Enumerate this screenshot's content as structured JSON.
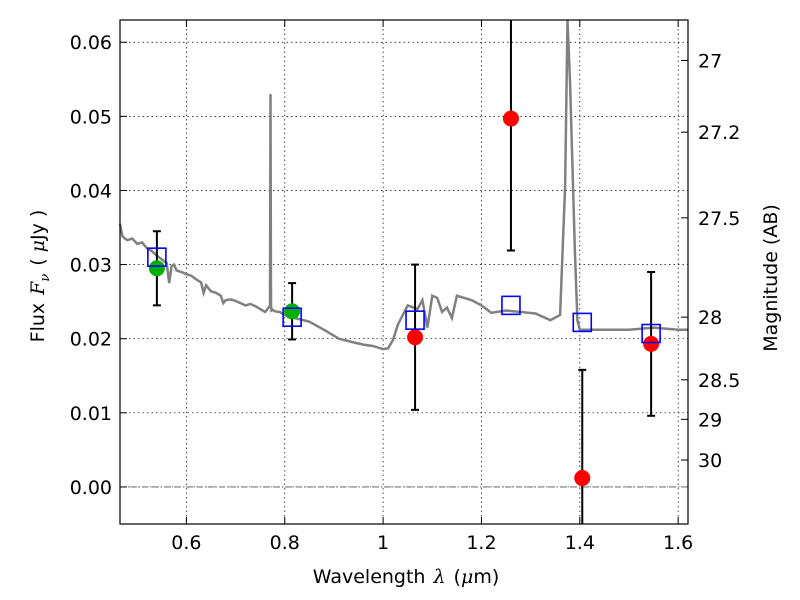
{
  "chart_data": {
    "type": "scatter",
    "title": "",
    "xlabel_text": "Wavelength",
    "xlabel_symbol": "λ",
    "xlabel_unit_open": "(",
    "xlabel_unit_mu": "μ",
    "xlabel_unit_rest": "m)",
    "ylabel_text": "Flux",
    "ylabel_symbol": "F",
    "ylabel_subscript": "ν",
    "ylabel_unit_open": "(",
    "ylabel_unit_mu": "μ",
    "ylabel_unit_rest": "Jy )",
    "y2label": "Magnitude (AB)",
    "xlim": [
      0.465,
      1.62
    ],
    "ylim": [
      -0.005,
      0.063
    ],
    "x_ticks": [
      {
        "value": 0.6,
        "label": "0.6"
      },
      {
        "value": 0.8,
        "label": "0.8"
      },
      {
        "value": 1.0,
        "label": "1"
      },
      {
        "value": 1.2,
        "label": "1.2"
      },
      {
        "value": 1.4,
        "label": "1.4"
      },
      {
        "value": 1.6,
        "label": "1.6"
      }
    ],
    "y_ticks": [
      {
        "value": 0.0,
        "label": "0.00"
      },
      {
        "value": 0.01,
        "label": "0.01"
      },
      {
        "value": 0.02,
        "label": "0.02"
      },
      {
        "value": 0.03,
        "label": "0.03"
      },
      {
        "value": 0.04,
        "label": "0.04"
      },
      {
        "value": 0.05,
        "label": "0.05"
      },
      {
        "value": 0.06,
        "label": "0.06"
      }
    ],
    "y2_ticks": [
      {
        "mag": 27,
        "label": "27"
      },
      {
        "mag": 27.2,
        "label": "27.2"
      },
      {
        "mag": 27.5,
        "label": "27.5"
      },
      {
        "mag": 28,
        "label": "28"
      },
      {
        "mag": 28.5,
        "label": "28.5"
      },
      {
        "mag": 29,
        "label": "29"
      },
      {
        "mag": 30,
        "label": "30"
      }
    ],
    "grid": true,
    "colors": {
      "model": "#808080",
      "observed_red": "#ff0000",
      "observed_green": "#00b000",
      "model_box": "#0000ff",
      "errorbar": "#000000",
      "zero_line": "#555555"
    },
    "model_sed": {
      "x": [
        0.465,
        0.47,
        0.475,
        0.48,
        0.49,
        0.5,
        0.51,
        0.52,
        0.53,
        0.54,
        0.55,
        0.56,
        0.565,
        0.57,
        0.575,
        0.58,
        0.59,
        0.6,
        0.61,
        0.62,
        0.63,
        0.635,
        0.64,
        0.65,
        0.66,
        0.67,
        0.675,
        0.68,
        0.69,
        0.7,
        0.71,
        0.72,
        0.73,
        0.74,
        0.75,
        0.76,
        0.765,
        0.77,
        0.771,
        0.772,
        0.773,
        0.775,
        0.78,
        0.79,
        0.8,
        0.82,
        0.85,
        0.88,
        0.91,
        0.94,
        0.96,
        0.98,
        1.0,
        1.01,
        1.02,
        1.03,
        1.05,
        1.07,
        1.08,
        1.09,
        1.1,
        1.11,
        1.12,
        1.13,
        1.14,
        1.15,
        1.16,
        1.18,
        1.2,
        1.22,
        1.25,
        1.28,
        1.31,
        1.34,
        1.36,
        1.37,
        1.375,
        1.38,
        1.39,
        1.395,
        1.4,
        1.45,
        1.5,
        1.55,
        1.6,
        1.62
      ],
      "y": [
        0.0355,
        0.0338,
        0.0335,
        0.0333,
        0.0335,
        0.0328,
        0.033,
        0.0322,
        0.0318,
        0.0312,
        0.0307,
        0.0302,
        0.0275,
        0.0298,
        0.03,
        0.0292,
        0.029,
        0.0287,
        0.0285,
        0.028,
        0.0276,
        0.0262,
        0.0272,
        0.0264,
        0.0262,
        0.0258,
        0.0248,
        0.0252,
        0.0253,
        0.0251,
        0.0248,
        0.0245,
        0.0247,
        0.0244,
        0.024,
        0.0236,
        0.024,
        0.0245,
        0.053,
        0.0245,
        0.0238,
        0.0239,
        0.0237,
        0.0236,
        0.0232,
        0.0228,
        0.0223,
        0.0212,
        0.02,
        0.0195,
        0.0192,
        0.019,
        0.0186,
        0.0187,
        0.0198,
        0.0219,
        0.0245,
        0.024,
        0.0252,
        0.0215,
        0.0258,
        0.0255,
        0.0236,
        0.0242,
        0.0228,
        0.0258,
        0.0256,
        0.0252,
        0.0245,
        0.0235,
        0.0238,
        0.0236,
        0.0234,
        0.0225,
        0.0232,
        0.0405,
        0.063,
        0.0548,
        0.0318,
        0.0225,
        0.0212,
        0.0212,
        0.0212,
        0.0215,
        0.0212,
        0.0212
      ]
    },
    "observed": [
      {
        "x": 0.54,
        "y": 0.0295,
        "err": 0.005,
        "color": "green"
      },
      {
        "x": 0.815,
        "y": 0.0237,
        "err": 0.0038,
        "color": "green"
      },
      {
        "x": 1.065,
        "y": 0.0202,
        "err": 0.0098,
        "color": "red"
      },
      {
        "x": 1.26,
        "y": 0.0497,
        "err": 0.0178,
        "color": "red"
      },
      {
        "x": 1.405,
        "y": 0.0012,
        "err": 0.0146,
        "color": "red"
      },
      {
        "x": 1.545,
        "y": 0.0193,
        "err": 0.0097,
        "color": "red"
      }
    ],
    "model_boxes": [
      {
        "x": 0.54,
        "y": 0.031
      },
      {
        "x": 0.815,
        "y": 0.0229
      },
      {
        "x": 1.065,
        "y": 0.0225
      },
      {
        "x": 1.26,
        "y": 0.0245
      },
      {
        "x": 1.405,
        "y": 0.0222
      },
      {
        "x": 1.545,
        "y": 0.0207
      }
    ]
  }
}
